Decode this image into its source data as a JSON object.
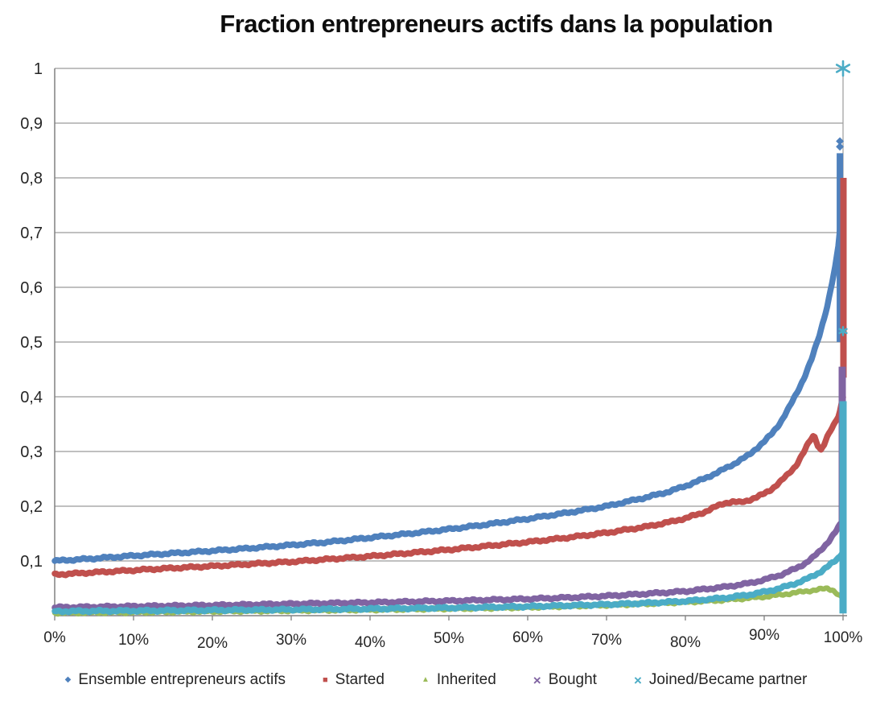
{
  "chart_data": {
    "type": "scatter",
    "title": "Fraction entrepreneurs actifs dans la population",
    "locale_decimal": "comma",
    "grid": true,
    "legend_position": "bottom",
    "x_axis": {
      "min": 0,
      "max": 100,
      "tick_labels": [
        "0%",
        "10%",
        "20%",
        "30%",
        "40%",
        "50%",
        "60%",
        "70%",
        "80%",
        "90%",
        "100%"
      ]
    },
    "y_axis": {
      "min": 0,
      "max": 1,
      "tick_labels": [
        "1",
        "0,9",
        "0,8",
        "0,7",
        "0,6",
        "0,5",
        "0,4",
        "0,3",
        "0,2",
        "0,1"
      ]
    },
    "series": [
      {
        "name": "Ensemble entrepreneurs actifs",
        "color": "#4F81BD",
        "marker": "diamond",
        "points": [
          [
            0,
            0.1
          ],
          [
            5,
            0.1045
          ],
          [
            10,
            0.1095
          ],
          [
            15,
            0.114
          ],
          [
            20,
            0.1185
          ],
          [
            25,
            0.1235
          ],
          [
            30,
            0.129
          ],
          [
            35,
            0.135
          ],
          [
            40,
            0.1425
          ],
          [
            45,
            0.15
          ],
          [
            50,
            0.158
          ],
          [
            55,
            0.167
          ],
          [
            60,
            0.177
          ],
          [
            65,
            0.188
          ],
          [
            70,
            0.2
          ],
          [
            75,
            0.216
          ],
          [
            78,
            0.227
          ],
          [
            80,
            0.237
          ],
          [
            82,
            0.248
          ],
          [
            84,
            0.261
          ],
          [
            86,
            0.276
          ],
          [
            88,
            0.293
          ],
          [
            90,
            0.318
          ],
          [
            91,
            0.333
          ],
          [
            92,
            0.352
          ],
          [
            93,
            0.376
          ],
          [
            94,
            0.403
          ],
          [
            95,
            0.433
          ],
          [
            96,
            0.468
          ],
          [
            97,
            0.512
          ],
          [
            98,
            0.566
          ],
          [
            99,
            0.636
          ],
          [
            99.5,
            0.685
          ],
          [
            100,
            0.785
          ]
        ],
        "end_stack": {
          "x": 99.6,
          "y0": 0.5,
          "y1": 0.845
        },
        "extra_points": [
          [
            99.6,
            0.857
          ],
          [
            99.6,
            0.867
          ]
        ]
      },
      {
        "name": "Started",
        "color": "#C0504D",
        "marker": "square",
        "points": [
          [
            0,
            0.075
          ],
          [
            5,
            0.079
          ],
          [
            10,
            0.083
          ],
          [
            15,
            0.087
          ],
          [
            20,
            0.0905
          ],
          [
            25,
            0.0945
          ],
          [
            30,
            0.0985
          ],
          [
            35,
            0.1035
          ],
          [
            40,
            0.1085
          ],
          [
            45,
            0.1145
          ],
          [
            50,
            0.1205
          ],
          [
            55,
            0.1275
          ],
          [
            60,
            0.1345
          ],
          [
            65,
            0.1425
          ],
          [
            70,
            0.1515
          ],
          [
            75,
            0.1625
          ],
          [
            78,
            0.171
          ],
          [
            80,
            0.178
          ],
          [
            82,
            0.187
          ],
          [
            83,
            0.193
          ],
          [
            84,
            0.2
          ],
          [
            85,
            0.206
          ],
          [
            86,
            0.208
          ],
          [
            87,
            0.207
          ],
          [
            88,
            0.211
          ],
          [
            89,
            0.216
          ],
          [
            90,
            0.223
          ],
          [
            91,
            0.232
          ],
          [
            92,
            0.244
          ],
          [
            93,
            0.258
          ],
          [
            94,
            0.274
          ],
          [
            95,
            0.298
          ],
          [
            95.5,
            0.312
          ],
          [
            96,
            0.324
          ],
          [
            96.3,
            0.33
          ],
          [
            96.8,
            0.312
          ],
          [
            97.2,
            0.303
          ],
          [
            97.6,
            0.313
          ],
          [
            98,
            0.326
          ],
          [
            98.5,
            0.34
          ],
          [
            99,
            0.353
          ],
          [
            99.5,
            0.368
          ],
          [
            100,
            0.4
          ]
        ],
        "end_stack": {
          "x": 100.05,
          "y0": 0.435,
          "y1": 0.8
        },
        "extra_points": []
      },
      {
        "name": "Inherited",
        "color": "#9BBB59",
        "marker": "triangle",
        "points": [
          [
            0,
            0.005
          ],
          [
            10,
            0.006
          ],
          [
            20,
            0.0075
          ],
          [
            30,
            0.009
          ],
          [
            40,
            0.0105
          ],
          [
            50,
            0.0125
          ],
          [
            55,
            0.0135
          ],
          [
            60,
            0.015
          ],
          [
            65,
            0.017
          ],
          [
            70,
            0.019
          ],
          [
            75,
            0.0215
          ],
          [
            80,
            0.0245
          ],
          [
            85,
            0.0285
          ],
          [
            88,
            0.032
          ],
          [
            90,
            0.0345
          ],
          [
            92,
            0.038
          ],
          [
            94,
            0.042
          ],
          [
            95,
            0.044
          ],
          [
            96,
            0.046
          ],
          [
            97,
            0.048
          ],
          [
            98,
            0.0495
          ],
          [
            98.7,
            0.047
          ],
          [
            99.3,
            0.04
          ],
          [
            100,
            0.031
          ]
        ],
        "end_stack": null,
        "extra_points": []
      },
      {
        "name": "Bought",
        "color": "#8064A2",
        "marker": "cross",
        "points": [
          [
            0,
            0.015
          ],
          [
            10,
            0.017
          ],
          [
            20,
            0.019
          ],
          [
            30,
            0.0215
          ],
          [
            40,
            0.024
          ],
          [
            50,
            0.027
          ],
          [
            60,
            0.0305
          ],
          [
            65,
            0.033
          ],
          [
            70,
            0.036
          ],
          [
            75,
            0.04
          ],
          [
            80,
            0.0445
          ],
          [
            85,
            0.0525
          ],
          [
            88,
            0.059
          ],
          [
            90,
            0.0655
          ],
          [
            92,
            0.074
          ],
          [
            94,
            0.086
          ],
          [
            95,
            0.094
          ],
          [
            96,
            0.104
          ],
          [
            97,
            0.117
          ],
          [
            98,
            0.133
          ],
          [
            99,
            0.152
          ],
          [
            99.5,
            0.163
          ],
          [
            100,
            0.175
          ]
        ],
        "end_stack": {
          "x": 99.9,
          "y0": 0.155,
          "y1": 0.455
        },
        "extra_points": []
      },
      {
        "name": "Joined/Became partner",
        "color": "#4BACC6",
        "marker": "cross",
        "points": [
          [
            0,
            0.008
          ],
          [
            10,
            0.009
          ],
          [
            20,
            0.01
          ],
          [
            30,
            0.0112
          ],
          [
            40,
            0.0125
          ],
          [
            50,
            0.0143
          ],
          [
            60,
            0.0168
          ],
          [
            65,
            0.0185
          ],
          [
            70,
            0.0205
          ],
          [
            75,
            0.023
          ],
          [
            80,
            0.0265
          ],
          [
            85,
            0.0325
          ],
          [
            88,
            0.038
          ],
          [
            90,
            0.0435
          ],
          [
            92,
            0.05
          ],
          [
            94,
            0.059
          ],
          [
            95,
            0.0645
          ],
          [
            96,
            0.071
          ],
          [
            97,
            0.079
          ],
          [
            98,
            0.089
          ],
          [
            99,
            0.1
          ],
          [
            99.5,
            0.107
          ],
          [
            100,
            0.118
          ]
        ],
        "end_stack": {
          "x": 100,
          "y0": 0.004,
          "y1": 0.392
        },
        "extra_points": [
          [
            100,
            0.52
          ],
          [
            100,
            1.0
          ]
        ]
      }
    ]
  },
  "colors": {
    "grid": "#9b9b9b",
    "axis": "#808080",
    "text": "#262626",
    "title": "#0d0d0d",
    "background": "#ffffff"
  }
}
